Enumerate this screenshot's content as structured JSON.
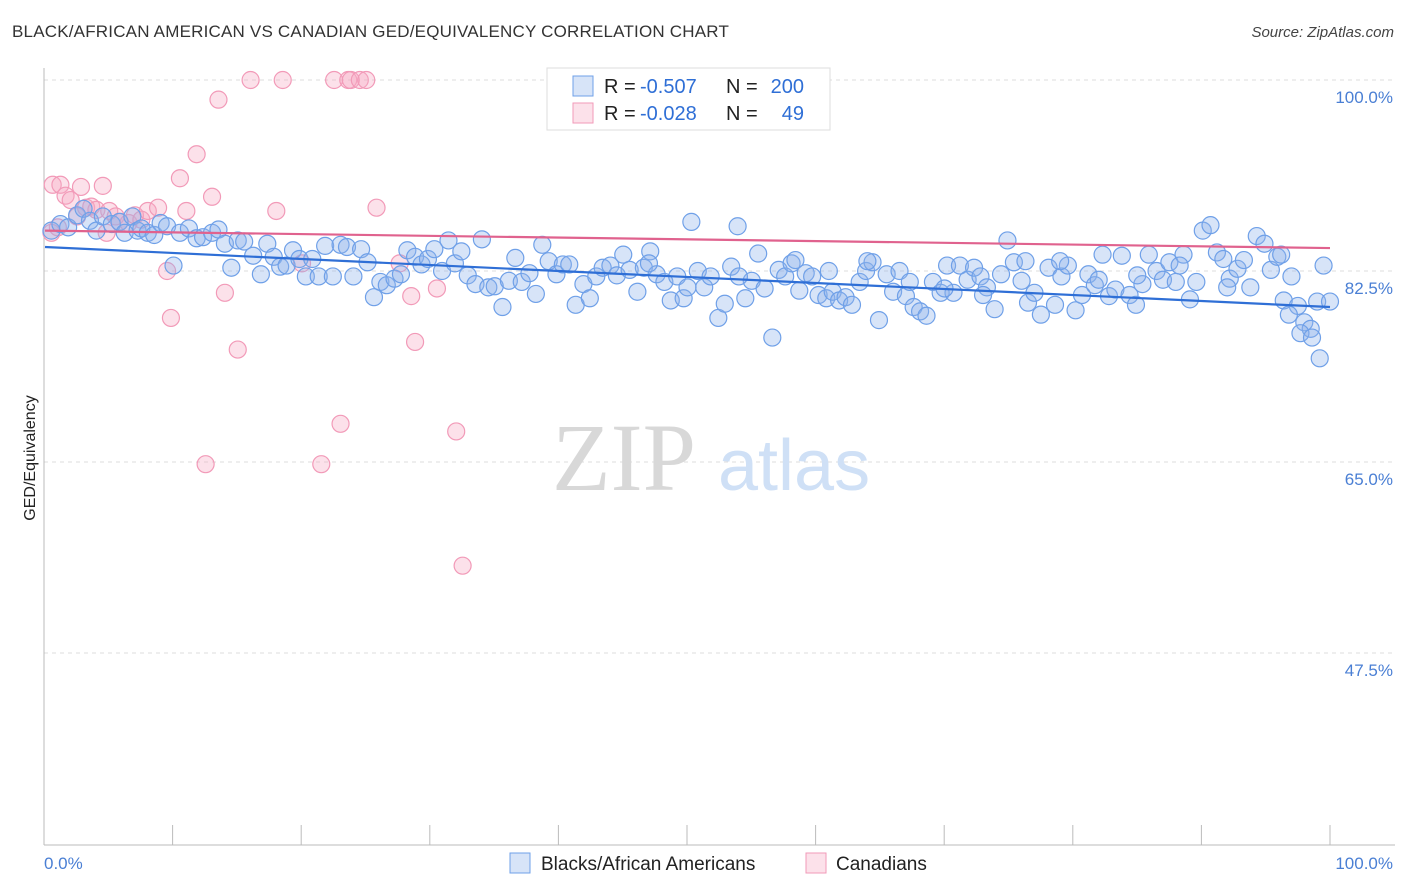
{
  "header": {
    "title": "BLACK/AFRICAN AMERICAN VS CANADIAN GED/EQUIVALENCY CORRELATION CHART",
    "source": "Source: ZipAtlas.com"
  },
  "watermark": {
    "zip": "ZIP",
    "atlas": "atlas"
  },
  "legend_box": {
    "rows": [
      {
        "r_label": "R = ",
        "r_value": "-0.507",
        "n_label": "N = ",
        "n_value": "200",
        "color": "#6fa0e8"
      },
      {
        "r_label": "R = ",
        "r_value": "-0.028",
        "n_label": "N = ",
        "n_value": "49",
        "color": "#f29ab8"
      }
    ]
  },
  "chart_data": {
    "type": "scatter",
    "title": "BLACK/AFRICAN AMERICAN VS CANADIAN GED/EQUIVALENCY CORRELATION CHART",
    "xlabel": "",
    "ylabel": "GED/Equivalency",
    "xlim": [
      0,
      100
    ],
    "ylim": [
      30,
      102
    ],
    "x_tick_labels": [
      "0.0%",
      "100.0%"
    ],
    "y_ticks": [
      {
        "value": 100.0,
        "label": "100.0%"
      },
      {
        "value": 82.5,
        "label": "82.5%"
      },
      {
        "value": 65.0,
        "label": "65.0%"
      },
      {
        "value": 47.5,
        "label": "47.5%"
      }
    ],
    "grid": "horizontal-dashed",
    "legend_position": "bottom-center",
    "series": [
      {
        "name": "Blacks/African Americans",
        "color": "#6fa0e8",
        "trend": {
          "x": [
            0,
            100
          ],
          "y": [
            84.7,
            79.2
          ]
        },
        "points": [
          [
            0.5,
            86.2
          ],
          [
            1.2,
            86.8
          ],
          [
            1.8,
            86.5
          ],
          [
            2.5,
            87.6
          ],
          [
            3.0,
            88.2
          ],
          [
            3.5,
            87.1
          ],
          [
            4.0,
            86.2
          ],
          [
            4.5,
            87.5
          ],
          [
            5.2,
            86.8
          ],
          [
            5.8,
            87.0
          ],
          [
            6.2,
            86.0
          ],
          [
            6.8,
            87.5
          ],
          [
            7.2,
            86.2
          ],
          [
            7.5,
            86.4
          ],
          [
            8.0,
            86.0
          ],
          [
            8.5,
            85.8
          ],
          [
            9.0,
            86.9
          ],
          [
            9.5,
            86.6
          ],
          [
            10.0,
            83.0
          ],
          [
            10.5,
            86.0
          ],
          [
            11.2,
            86.4
          ],
          [
            11.8,
            85.5
          ],
          [
            12.3,
            85.6
          ],
          [
            13.0,
            86.0
          ],
          [
            13.5,
            86.3
          ],
          [
            14.0,
            85.0
          ],
          [
            14.5,
            82.8
          ],
          [
            15.0,
            85.3
          ],
          [
            15.5,
            85.2
          ],
          [
            16.2,
            83.9
          ],
          [
            16.8,
            82.2
          ],
          [
            17.3,
            85.0
          ],
          [
            17.8,
            83.8
          ],
          [
            18.3,
            82.9
          ],
          [
            18.8,
            83.0
          ],
          [
            19.3,
            84.4
          ],
          [
            19.8,
            83.6
          ],
          [
            20.3,
            82.0
          ],
          [
            20.8,
            83.6
          ],
          [
            21.3,
            82.0
          ],
          [
            21.8,
            84.8
          ],
          [
            22.4,
            82.0
          ],
          [
            23.0,
            84.9
          ],
          [
            23.5,
            84.7
          ],
          [
            24.0,
            82.0
          ],
          [
            24.6,
            84.5
          ],
          [
            25.1,
            83.3
          ],
          [
            25.6,
            80.1
          ],
          [
            26.1,
            81.5
          ],
          [
            26.6,
            81.2
          ],
          [
            27.2,
            81.8
          ],
          [
            27.7,
            82.2
          ],
          [
            28.2,
            84.4
          ],
          [
            28.8,
            83.8
          ],
          [
            29.3,
            83.1
          ],
          [
            29.8,
            83.6
          ],
          [
            30.3,
            84.5
          ],
          [
            30.9,
            82.5
          ],
          [
            31.4,
            85.3
          ],
          [
            31.9,
            83.2
          ],
          [
            32.4,
            84.3
          ],
          [
            32.9,
            82.1
          ],
          [
            33.5,
            81.3
          ],
          [
            34.0,
            85.4
          ],
          [
            34.5,
            81.0
          ],
          [
            35.0,
            81.1
          ],
          [
            35.6,
            79.2
          ],
          [
            36.1,
            81.6
          ],
          [
            36.6,
            83.7
          ],
          [
            37.1,
            81.5
          ],
          [
            37.7,
            82.3
          ],
          [
            38.2,
            80.4
          ],
          [
            38.7,
            84.9
          ],
          [
            39.2,
            83.4
          ],
          [
            39.8,
            82.2
          ],
          [
            40.3,
            83.1
          ],
          [
            40.8,
            83.1
          ],
          [
            41.3,
            79.4
          ],
          [
            41.9,
            81.3
          ],
          [
            42.4,
            80.0
          ],
          [
            42.9,
            82.0
          ],
          [
            43.4,
            82.8
          ],
          [
            44.0,
            83.0
          ],
          [
            44.5,
            82.1
          ],
          [
            45.0,
            84.0
          ],
          [
            45.5,
            82.6
          ],
          [
            46.1,
            80.6
          ],
          [
            46.6,
            82.8
          ],
          [
            47.1,
            84.3
          ],
          [
            47.6,
            82.2
          ],
          [
            48.2,
            81.5
          ],
          [
            48.7,
            79.8
          ],
          [
            49.2,
            82.0
          ],
          [
            49.7,
            80.0
          ],
          [
            50.3,
            87.0
          ],
          [
            50.8,
            82.5
          ],
          [
            51.3,
            81.0
          ],
          [
            51.8,
            82.0
          ],
          [
            52.4,
            78.2
          ],
          [
            52.9,
            79.5
          ],
          [
            53.4,
            82.9
          ],
          [
            53.9,
            86.6
          ],
          [
            54.5,
            80.0
          ],
          [
            55.0,
            81.6
          ],
          [
            55.5,
            84.1
          ],
          [
            56.0,
            80.9
          ],
          [
            56.6,
            76.4
          ],
          [
            57.1,
            82.6
          ],
          [
            57.6,
            82.0
          ],
          [
            58.1,
            83.2
          ],
          [
            58.7,
            80.7
          ],
          [
            59.2,
            82.3
          ],
          [
            59.7,
            82.0
          ],
          [
            60.2,
            80.3
          ],
          [
            60.8,
            80.0
          ],
          [
            61.3,
            80.6
          ],
          [
            61.8,
            79.8
          ],
          [
            62.3,
            80.1
          ],
          [
            62.8,
            79.4
          ],
          [
            63.4,
            81.5
          ],
          [
            63.9,
            82.5
          ],
          [
            64.4,
            83.3
          ],
          [
            64.9,
            78.0
          ],
          [
            65.5,
            82.2
          ],
          [
            66.0,
            80.6
          ],
          [
            66.5,
            82.5
          ],
          [
            67.0,
            80.2
          ],
          [
            67.6,
            79.2
          ],
          [
            68.1,
            78.8
          ],
          [
            68.6,
            78.4
          ],
          [
            69.1,
            81.5
          ],
          [
            69.7,
            80.5
          ],
          [
            70.2,
            83.0
          ],
          [
            70.7,
            80.5
          ],
          [
            71.2,
            83.0
          ],
          [
            71.8,
            81.7
          ],
          [
            72.3,
            82.8
          ],
          [
            72.8,
            82.0
          ],
          [
            73.3,
            81.0
          ],
          [
            73.9,
            79.0
          ],
          [
            74.4,
            82.2
          ],
          [
            74.9,
            85.3
          ],
          [
            75.4,
            83.3
          ],
          [
            76.0,
            81.6
          ],
          [
            76.5,
            79.6
          ],
          [
            77.0,
            80.5
          ],
          [
            77.5,
            78.5
          ],
          [
            78.1,
            82.8
          ],
          [
            78.6,
            79.4
          ],
          [
            79.1,
            82.0
          ],
          [
            79.6,
            83.0
          ],
          [
            80.2,
            78.9
          ],
          [
            80.7,
            80.3
          ],
          [
            81.2,
            82.2
          ],
          [
            81.7,
            81.2
          ],
          [
            82.3,
            84.0
          ],
          [
            82.8,
            80.2
          ],
          [
            83.3,
            80.8
          ],
          [
            83.8,
            83.9
          ],
          [
            84.4,
            80.3
          ],
          [
            84.9,
            79.4
          ],
          [
            85.4,
            81.3
          ],
          [
            85.9,
            84.0
          ],
          [
            86.5,
            82.5
          ],
          [
            87.0,
            81.7
          ],
          [
            87.5,
            83.3
          ],
          [
            88.0,
            81.5
          ],
          [
            88.6,
            84.0
          ],
          [
            89.1,
            79.9
          ],
          [
            89.6,
            81.5
          ],
          [
            90.1,
            86.2
          ],
          [
            90.7,
            86.7
          ],
          [
            91.2,
            84.2
          ],
          [
            91.7,
            83.6
          ],
          [
            92.2,
            81.8
          ],
          [
            92.8,
            82.7
          ],
          [
            93.3,
            83.5
          ],
          [
            93.8,
            81.0
          ],
          [
            94.3,
            85.7
          ],
          [
            94.9,
            85.0
          ],
          [
            95.4,
            82.6
          ],
          [
            95.9,
            83.8
          ],
          [
            96.4,
            79.8
          ],
          [
            97.0,
            82.0
          ],
          [
            97.5,
            79.3
          ],
          [
            98.0,
            77.8
          ],
          [
            98.5,
            77.2
          ],
          [
            99.0,
            79.7
          ],
          [
            99.5,
            83.0
          ],
          [
            100.0,
            79.7
          ],
          [
            96.8,
            78.5
          ],
          [
            97.7,
            76.8
          ],
          [
            99.2,
            74.5
          ],
          [
            98.6,
            76.4
          ],
          [
            96.2,
            84.0
          ],
          [
            92.0,
            81.0
          ],
          [
            88.3,
            83.0
          ],
          [
            85.0,
            82.1
          ],
          [
            82.0,
            81.7
          ],
          [
            79.0,
            83.4
          ],
          [
            76.3,
            83.4
          ],
          [
            73.0,
            80.3
          ],
          [
            70.0,
            80.9
          ],
          [
            67.3,
            81.5
          ],
          [
            64.0,
            83.4
          ],
          [
            61.0,
            82.5
          ],
          [
            58.4,
            83.5
          ],
          [
            54.0,
            82.0
          ],
          [
            50.0,
            81.0
          ],
          [
            47.0,
            83.2
          ]
        ]
      },
      {
        "name": "Canadians",
        "color": "#f29ab8",
        "trend": {
          "x": [
            0,
            100
          ],
          "y": [
            86.2,
            84.6
          ]
        },
        "points": [
          [
            0.5,
            86.0
          ],
          [
            0.6,
            90.4
          ],
          [
            1.0,
            86.5
          ],
          [
            1.2,
            90.4
          ],
          [
            1.6,
            89.4
          ],
          [
            2.0,
            89.0
          ],
          [
            2.5,
            87.5
          ],
          [
            2.8,
            90.2
          ],
          [
            3.2,
            88.3
          ],
          [
            3.6,
            88.4
          ],
          [
            4.0,
            88.1
          ],
          [
            4.5,
            90.3
          ],
          [
            4.8,
            86.0
          ],
          [
            5.0,
            88.0
          ],
          [
            5.5,
            87.5
          ],
          [
            5.8,
            87.0
          ],
          [
            6.5,
            86.9
          ],
          [
            7.0,
            87.6
          ],
          [
            7.5,
            87.2
          ],
          [
            8.0,
            88.0
          ],
          [
            8.8,
            88.3
          ],
          [
            9.5,
            82.5
          ],
          [
            9.8,
            78.2
          ],
          [
            10.5,
            91.0
          ],
          [
            11.0,
            88.0
          ],
          [
            11.8,
            93.2
          ],
          [
            12.5,
            64.8
          ],
          [
            13.0,
            89.3
          ],
          [
            13.5,
            98.2
          ],
          [
            14.0,
            80.5
          ],
          [
            15.0,
            75.3
          ],
          [
            16.0,
            100.0
          ],
          [
            18.0,
            88.0
          ],
          [
            18.5,
            100.0
          ],
          [
            20.0,
            83.2
          ],
          [
            21.5,
            64.8
          ],
          [
            22.5,
            100.0
          ],
          [
            23.0,
            68.5
          ],
          [
            23.6,
            100.0
          ],
          [
            23.8,
            100.0
          ],
          [
            24.5,
            100.0
          ],
          [
            25.0,
            100.0
          ],
          [
            25.8,
            88.3
          ],
          [
            27.6,
            83.2
          ],
          [
            28.5,
            80.2
          ],
          [
            28.8,
            76.0
          ],
          [
            30.5,
            80.9
          ],
          [
            32.0,
            67.8
          ],
          [
            32.5,
            55.5
          ]
        ]
      }
    ]
  }
}
